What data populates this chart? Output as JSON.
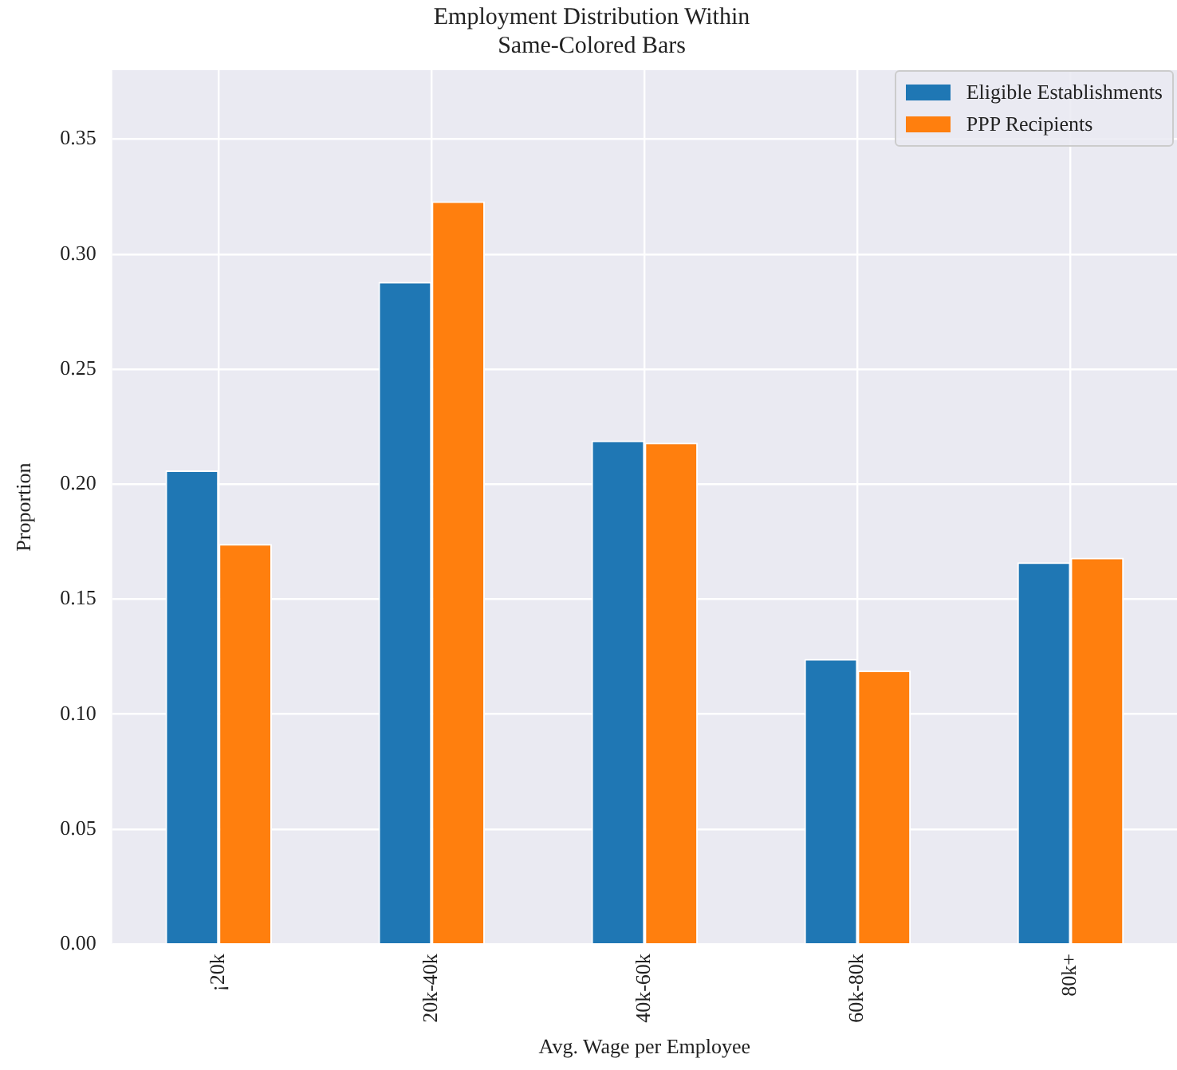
{
  "chart_data": {
    "type": "bar",
    "title": "Employment Distribution Within\nSame-Colored Bars",
    "xlabel": "Avg. Wage per Employee",
    "ylabel": "Proportion",
    "categories": [
      "¡20k",
      "20k-40k",
      "40k-60k",
      "60k-80k",
      "80k+"
    ],
    "series": [
      {
        "name": "Eligible Establishments",
        "color": "#1f77b4",
        "values": [
          0.206,
          0.288,
          0.219,
          0.124,
          0.166
        ]
      },
      {
        "name": "PPP Recipients",
        "color": "#ff7f0e",
        "values": [
          0.174,
          0.323,
          0.218,
          0.119,
          0.168
        ]
      }
    ],
    "ylim": [
      0,
      0.38
    ],
    "yticks": [
      {
        "value": 0,
        "label": "0.00"
      },
      0.05,
      {
        "value": 0.1,
        "label": "0.10"
      },
      0.15,
      {
        "value": 0.2,
        "label": "0.20"
      },
      0.25,
      {
        "value": 0.3,
        "label": "0.30"
      },
      0.35
    ],
    "grid": true,
    "legend": "top right"
  }
}
